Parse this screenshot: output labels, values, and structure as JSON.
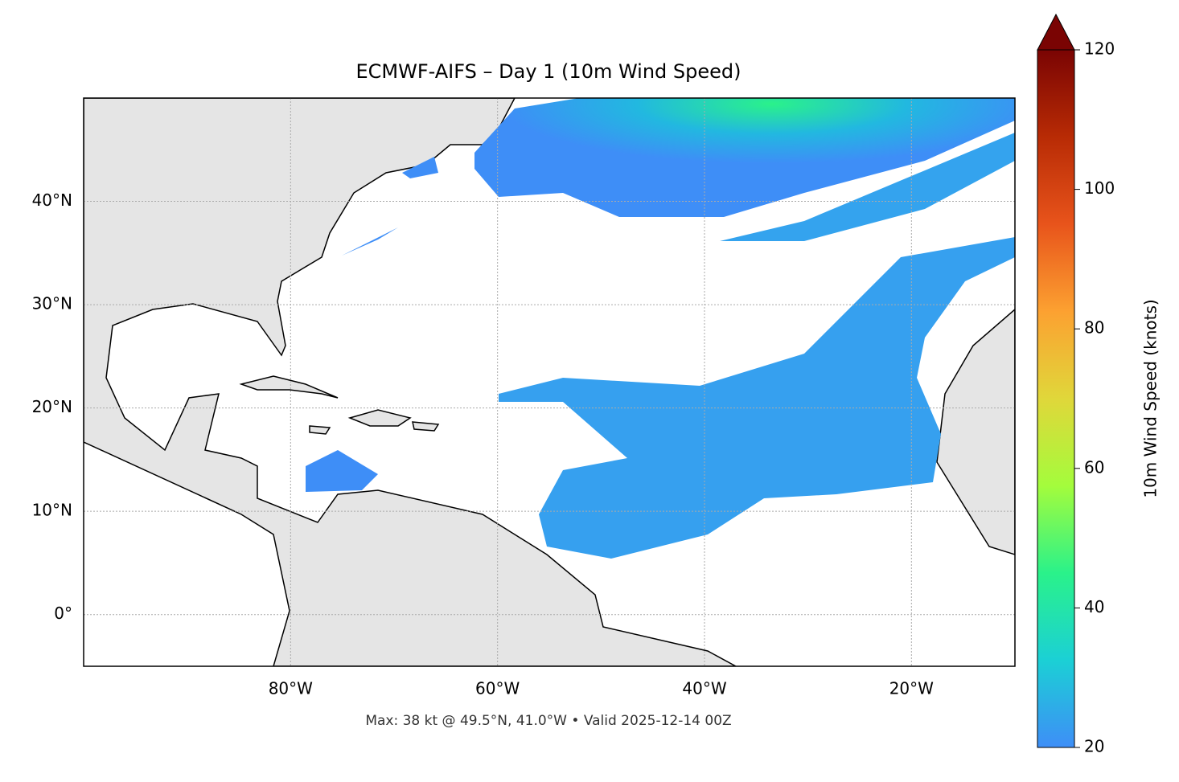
{
  "chart_data": {
    "type": "map",
    "title": "ECMWF-AIFS – Day 1 (10m Wind Speed)",
    "footer": "Max: 38 kt @ 49.5°N, 41.0°W • Valid 2025-12-14 00Z",
    "xlim": [
      -100,
      -10
    ],
    "ylim": [
      -5,
      50
    ],
    "xticks": [
      {
        "value": -80,
        "label": "80°W"
      },
      {
        "value": -60,
        "label": "60°W"
      },
      {
        "value": -40,
        "label": "40°W"
      },
      {
        "value": -20,
        "label": "20°W"
      }
    ],
    "yticks": [
      {
        "value": 0,
        "label": "0°"
      },
      {
        "value": 10,
        "label": "10°N"
      },
      {
        "value": 20,
        "label": "20°N"
      },
      {
        "value": 30,
        "label": "30°N"
      },
      {
        "value": 40,
        "label": "40°N"
      }
    ],
    "grid": true,
    "colorbar": {
      "label": "10m Wind Speed (knots)",
      "lim": [
        20,
        120
      ],
      "ticks": [
        20,
        40,
        60,
        80,
        100,
        120
      ],
      "colors": [
        "#3e8ef7",
        "#1bd0d5",
        "#2af28a",
        "#a4fc3c",
        "#e0d73a",
        "#fca131",
        "#e8541b",
        "#b82b05",
        "#7a0403"
      ],
      "extend": "max"
    }
  }
}
